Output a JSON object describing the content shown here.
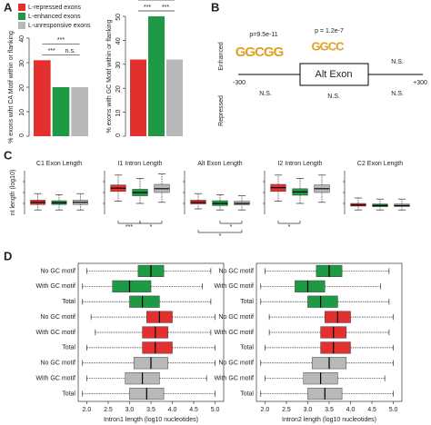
{
  "panel_labels": [
    "A",
    "B",
    "C",
    "D"
  ],
  "chart_data": [
    {
      "type": "bar",
      "ylabel": "% exons wiht CA Motif within or flanking",
      "legend": [
        "L-repressed exons",
        "L-enhanced exons",
        "L-unresponsive exons"
      ],
      "values": [
        31,
        20,
        20
      ],
      "colors": [
        "#e3302f",
        "#1e9944",
        "#b8b8b8"
      ],
      "ylim": [
        0,
        40
      ],
      "yticks": [
        0,
        10,
        20,
        30,
        40
      ],
      "annotations": [
        {
          "text": "***",
          "between": [
            0,
            2
          ]
        },
        {
          "text": "***",
          "between": [
            0,
            1
          ]
        },
        {
          "text": "n.s.",
          "between": [
            1,
            2
          ]
        }
      ]
    },
    {
      "type": "bar",
      "ylabel": "% exons with GC Motif within or flanking",
      "values": [
        32,
        50,
        32
      ],
      "colors": [
        "#e3302f",
        "#1e9944",
        "#b8b8b8"
      ],
      "ylim": [
        0,
        50
      ],
      "yticks": [
        0,
        10,
        20,
        30,
        40,
        50
      ],
      "annotations": [
        {
          "text": "n.s.",
          "between": [
            0,
            2
          ]
        },
        {
          "text": "***",
          "between": [
            0,
            1
          ]
        },
        {
          "text": "***",
          "between": [
            1,
            2
          ]
        }
      ]
    },
    {
      "type": "vbox",
      "title": "C1 Exon Length",
      "ylabel": "nt length (log10)",
      "ylim": [
        1,
        5
      ],
      "colors": [
        "#e3302f",
        "#1e9944",
        "#b8b8b8"
      ],
      "boxes": [
        {
          "low": 1.4,
          "q1": 1.9,
          "median": 2.1,
          "q3": 2.3,
          "high": 2.9
        },
        {
          "low": 1.4,
          "q1": 1.9,
          "median": 2.05,
          "q3": 2.25,
          "high": 2.8
        },
        {
          "low": 1.4,
          "q1": 1.9,
          "median": 2.1,
          "q3": 2.3,
          "high": 2.9
        }
      ],
      "annotations": []
    },
    {
      "type": "vbox",
      "title": "I1 Intron Length",
      "ylim": [
        1,
        5
      ],
      "colors": [
        "#e3302f",
        "#1e9944",
        "#b8b8b8"
      ],
      "boxes": [
        {
          "low": 2.2,
          "q1": 3.1,
          "median": 3.4,
          "q3": 3.7,
          "high": 4.6
        },
        {
          "low": 2.0,
          "q1": 2.7,
          "median": 3.0,
          "q3": 3.3,
          "high": 4.3
        },
        {
          "low": 2.1,
          "q1": 3.0,
          "median": 3.35,
          "q3": 3.75,
          "high": 4.7
        }
      ],
      "annotations": [
        {
          "text": "***",
          "between": [
            0,
            1
          ]
        },
        {
          "text": "*",
          "between": [
            1,
            2
          ]
        }
      ]
    },
    {
      "type": "vbox",
      "title": "Alt Exon Length",
      "ylim": [
        1,
        5
      ],
      "colors": [
        "#e3302f",
        "#1e9944",
        "#b8b8b8"
      ],
      "boxes": [
        {
          "low": 1.5,
          "q1": 1.95,
          "median": 2.1,
          "q3": 2.3,
          "high": 2.9
        },
        {
          "low": 1.4,
          "q1": 1.8,
          "median": 2.0,
          "q3": 2.25,
          "high": 2.8
        },
        {
          "low": 1.4,
          "q1": 1.85,
          "median": 2.0,
          "q3": 2.2,
          "high": 2.7
        }
      ],
      "annotations": [
        {
          "text": "*",
          "between": [
            0,
            2
          ]
        },
        {
          "text": "*",
          "between": [
            1,
            2
          ]
        }
      ]
    },
    {
      "type": "vbox",
      "title": "I2 Intron Length",
      "ylim": [
        1,
        5
      ],
      "colors": [
        "#e3302f",
        "#1e9944",
        "#b8b8b8"
      ],
      "boxes": [
        {
          "low": 2.2,
          "q1": 3.1,
          "median": 3.45,
          "q3": 3.75,
          "high": 4.6
        },
        {
          "low": 2.0,
          "q1": 2.75,
          "median": 3.05,
          "q3": 3.35,
          "high": 4.3
        },
        {
          "low": 2.1,
          "q1": 3.0,
          "median": 3.35,
          "q3": 3.7,
          "high": 4.6
        }
      ],
      "annotations": [
        {
          "text": "*",
          "between": [
            0,
            1
          ]
        }
      ]
    },
    {
      "type": "vbox",
      "title": "C2 Exon Length",
      "ylim": [
        1,
        5
      ],
      "colors": [
        "#e3302f",
        "#1e9944",
        "#b8b8b8"
      ],
      "boxes": [
        {
          "low": 1.4,
          "q1": 1.75,
          "median": 1.85,
          "q3": 2.0,
          "high": 2.5
        },
        {
          "low": 1.4,
          "q1": 1.7,
          "median": 1.8,
          "q3": 1.95,
          "high": 2.4
        },
        {
          "low": 1.4,
          "q1": 1.7,
          "median": 1.8,
          "q3": 1.95,
          "high": 2.4
        }
      ],
      "annotations": []
    },
    {
      "type": "hbox",
      "xlabel": "Intron1 length (log10 nucleotides)",
      "categories": [
        "No GC motif",
        "With GC motif",
        "Total",
        "No GC motif",
        "With GC motif",
        "Total",
        "No GC motif",
        "With GC motif",
        "Total"
      ],
      "colors": [
        "#1e9944",
        "#1e9944",
        "#1e9944",
        "#e3302f",
        "#e3302f",
        "#e3302f",
        "#b8b8b8",
        "#b8b8b8",
        "#b8b8b8"
      ],
      "xlim": [
        1.8,
        5.2
      ],
      "xticks": [
        {
          "value": 2,
          "label": "2.0"
        },
        {
          "value": 2.5,
          "label": "2.5"
        },
        {
          "value": 3,
          "label": "3.0"
        },
        {
          "value": 3.5,
          "label": "3.5"
        },
        {
          "value": 4,
          "label": "4.0"
        },
        {
          "value": 4.5,
          "label": "4.5"
        },
        {
          "value": 5,
          "label": "5.0"
        }
      ],
      "boxes": [
        {
          "low": 2.0,
          "q1": 3.2,
          "median": 3.5,
          "q3": 3.8,
          "high": 4.9
        },
        {
          "low": 1.9,
          "q1": 2.6,
          "median": 3.0,
          "q3": 3.5,
          "high": 4.7
        },
        {
          "low": 1.9,
          "q1": 3.0,
          "median": 3.3,
          "q3": 3.7,
          "high": 4.9
        },
        {
          "low": 2.1,
          "q1": 3.4,
          "median": 3.7,
          "q3": 4.0,
          "high": 5.0
        },
        {
          "low": 2.2,
          "q1": 3.3,
          "median": 3.6,
          "q3": 3.9,
          "high": 4.9
        },
        {
          "low": 2.0,
          "q1": 3.3,
          "median": 3.6,
          "q3": 4.0,
          "high": 5.0
        },
        {
          "low": 1.9,
          "q1": 3.1,
          "median": 3.5,
          "q3": 3.9,
          "high": 5.0
        },
        {
          "low": 2.0,
          "q1": 2.9,
          "median": 3.3,
          "q3": 3.7,
          "high": 4.8
        },
        {
          "low": 1.9,
          "q1": 3.0,
          "median": 3.4,
          "q3": 3.8,
          "high": 5.0
        }
      ]
    },
    {
      "type": "hbox",
      "xlabel": "Intron2 length (log10 nucleotides)",
      "categories": [
        "No GC motif",
        "With GC motif",
        "Total",
        "No GC motif",
        "With GC motif",
        "Total",
        "No GC motif",
        "With GC motif",
        "Total"
      ],
      "colors": [
        "#1e9944",
        "#1e9944",
        "#1e9944",
        "#e3302f",
        "#e3302f",
        "#e3302f",
        "#b8b8b8",
        "#b8b8b8",
        "#b8b8b8"
      ],
      "xlim": [
        1.8,
        5.2
      ],
      "xticks": [
        {
          "value": 2,
          "label": "2.0"
        },
        {
          "value": 2.5,
          "label": "2.5"
        },
        {
          "value": 3,
          "label": "3.0"
        },
        {
          "value": 3.5,
          "label": "3.5"
        },
        {
          "value": 4,
          "label": "4.0"
        },
        {
          "value": 4.5,
          "label": "4.5"
        },
        {
          "value": 5,
          "label": "5.0"
        }
      ],
      "boxes": [
        {
          "low": 2.0,
          "q1": 3.2,
          "median": 3.5,
          "q3": 3.8,
          "high": 4.9
        },
        {
          "low": 1.9,
          "q1": 2.7,
          "median": 3.0,
          "q3": 3.4,
          "high": 4.7
        },
        {
          "low": 1.9,
          "q1": 3.0,
          "median": 3.3,
          "q3": 3.7,
          "high": 4.9
        },
        {
          "low": 2.1,
          "q1": 3.4,
          "median": 3.7,
          "q3": 4.0,
          "high": 5.0
        },
        {
          "low": 2.1,
          "q1": 3.3,
          "median": 3.6,
          "q3": 3.9,
          "high": 4.9
        },
        {
          "low": 2.0,
          "q1": 3.3,
          "median": 3.6,
          "q3": 4.0,
          "high": 5.0
        },
        {
          "low": 1.9,
          "q1": 3.1,
          "median": 3.5,
          "q3": 3.9,
          "high": 5.0
        },
        {
          "low": 2.0,
          "q1": 2.9,
          "median": 3.3,
          "q3": 3.7,
          "high": 4.8
        },
        {
          "low": 1.9,
          "q1": 3.0,
          "median": 3.4,
          "q3": 3.8,
          "high": 5.0
        }
      ]
    }
  ],
  "diagram": {
    "label_enhanced": "Enhanced",
    "label_repressed": "Repressed",
    "p_values": [
      "p=9.5e-11",
      "p = 1.2e-7"
    ],
    "logos": [
      "GGCGG",
      "GGCC"
    ],
    "exon": "Alt Exon",
    "ns": [
      "N.S.",
      "N.S.",
      "N.S.",
      "N.S."
    ],
    "positions": [
      "-300",
      "+300"
    ]
  }
}
